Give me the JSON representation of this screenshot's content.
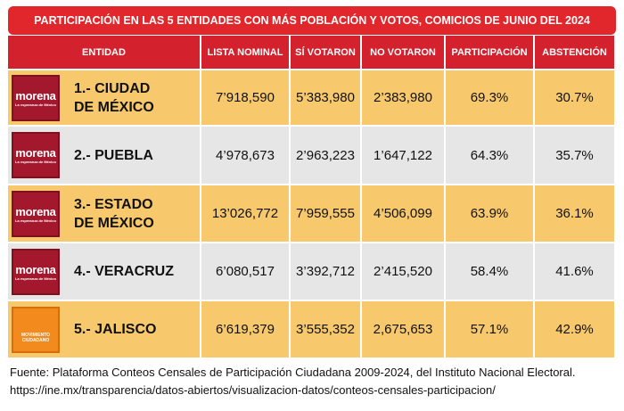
{
  "title": "PARTICIPACIÓN EN LAS 5 ENTIDADES CON MÁS POBLACIÓN Y VOTOS, COMICIOS DE JUNIO DEL 2024",
  "table": {
    "headers": [
      "ENTIDAD",
      "LISTA NOMINAL",
      "SÍ VOTARON",
      "NO VOTARON",
      "PARTICIPACIÓN",
      "ABSTENCIÓN"
    ],
    "rows": [
      {
        "logo": {
          "name": "morena",
          "tagline": "La esperanza de México"
        },
        "entity": [
          "1.- CIUDAD",
          "DE MÉXICO"
        ],
        "cells": [
          "7’918,590",
          "5’383,980",
          "2’383,980",
          "69.3%",
          "30.7%"
        ]
      },
      {
        "logo": {
          "name": "morena",
          "tagline": "La esperanza de México"
        },
        "entity": [
          "2.- PUEBLA"
        ],
        "cells": [
          "4’978,673",
          "2’963,223",
          "1’647,122",
          "64.3%",
          "35.7%"
        ]
      },
      {
        "logo": {
          "name": "morena",
          "tagline": "La esperanza de México"
        },
        "entity": [
          "3.- ESTADO",
          "DE MÉXICO"
        ],
        "cells": [
          "13’026,772",
          "7’959,555",
          "4’506,099",
          "63.9%",
          "36.1%"
        ]
      },
      {
        "logo": {
          "name": "morena",
          "tagline": "La esperanza de México"
        },
        "entity": [
          "4.- VERACRUZ"
        ],
        "cells": [
          "6’080,517",
          "3’392,712",
          "2’415,520",
          "58.4%",
          "41.6%"
        ]
      },
      {
        "logo": {
          "name": "MOVIMIENTO",
          "tagline": "CIUDADANO"
        },
        "entity": [
          "5.- JALISCO"
        ],
        "cells": [
          "6’619,379",
          "3’555,352",
          "2,675,653",
          "57.1%",
          "42.9%"
        ]
      }
    ]
  },
  "footer": [
    "Fuente: Plataforma Conteos Censales de Participación Ciudadana 2009-2024, del Instituto Nacional Electoral.",
    "https://ine.mx/transparencia/datos-abiertos/visualizacion-datos/conteos-censales-participacion/"
  ]
}
